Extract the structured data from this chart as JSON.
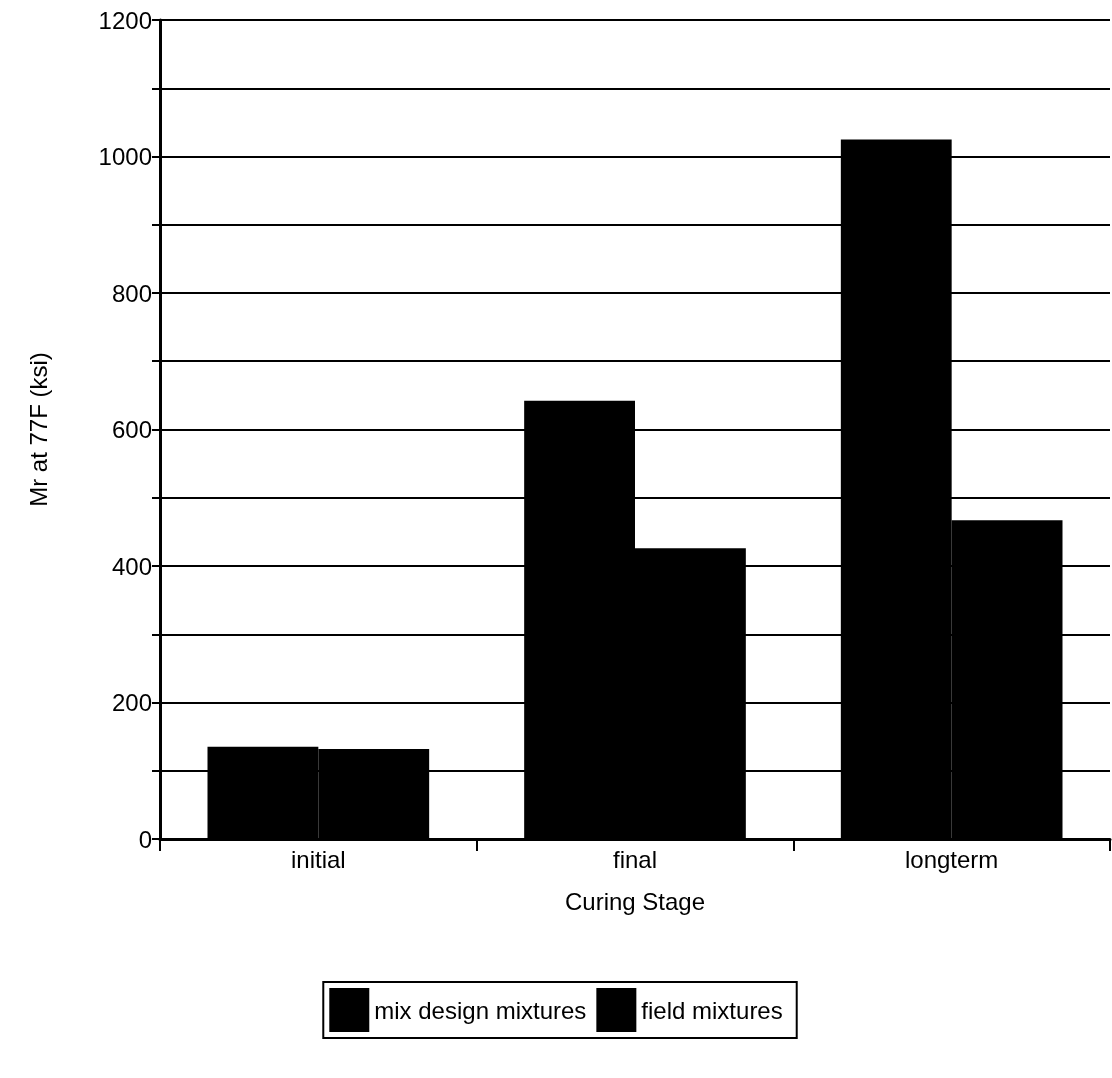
{
  "chart_data": {
    "type": "bar",
    "xlabel": "Curing Stage",
    "ylabel": "Mr at 77F (ksi)",
    "categories": [
      "initial",
      "final",
      "longterm"
    ],
    "series": [
      {
        "name": "mix design mixtures",
        "color": "#000000",
        "values": [
          135,
          642,
          1025
        ]
      },
      {
        "name": "field mixtures",
        "color": "#000000",
        "values": [
          132,
          426,
          467
        ]
      }
    ],
    "ylim": [
      0,
      1200
    ],
    "yticks": [
      0,
      {
        "value": 100,
        "label": null
      },
      200,
      {
        "value": 300,
        "label": null
      },
      400,
      {
        "value": 500,
        "label": null
      },
      600,
      {
        "value": 700,
        "label": null
      },
      800,
      {
        "value": 900,
        "label": null
      },
      1000,
      {
        "value": 1100,
        "label": null
      },
      1200
    ],
    "grid": "y",
    "legend": "bottom"
  }
}
